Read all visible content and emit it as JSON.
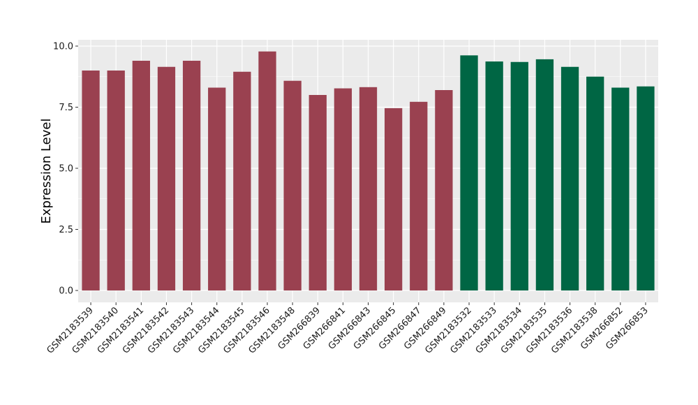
{
  "chart_data": {
    "type": "bar",
    "title": "",
    "xlabel": "",
    "ylabel": "Expression Level",
    "ylim": [
      0,
      10
    ],
    "yticks": [
      0.0,
      2.5,
      5.0,
      7.5,
      10.0
    ],
    "ytick_labels": [
      "0.0",
      "2.5",
      "5.0",
      "7.5",
      "10.0"
    ],
    "grid": true,
    "legend": "none",
    "colors": {
      "group1": "#9a4150",
      "group2": "#006644",
      "panel_bg": "#ebebeb",
      "grid": "#ffffff"
    },
    "categories": [
      "GSM2183539",
      "GSM2183540",
      "GSM2183541",
      "GSM2183542",
      "GSM2183543",
      "GSM2183544",
      "GSM2183545",
      "GSM2183546",
      "GSM2183548",
      "GSM266839",
      "GSM266841",
      "GSM266843",
      "GSM266845",
      "GSM266847",
      "GSM266849",
      "GSM2183532",
      "GSM2183533",
      "GSM2183534",
      "GSM2183535",
      "GSM2183536",
      "GSM2183538",
      "GSM266852",
      "GSM266853"
    ],
    "values": [
      9.0,
      9.0,
      9.4,
      9.15,
      9.4,
      8.3,
      8.95,
      9.78,
      8.58,
      8.0,
      8.27,
      8.32,
      7.46,
      7.72,
      8.2,
      9.62,
      9.37,
      9.35,
      9.46,
      9.15,
      8.75,
      8.3,
      8.35
    ],
    "groups": [
      "group1",
      "group1",
      "group1",
      "group1",
      "group1",
      "group1",
      "group1",
      "group1",
      "group1",
      "group1",
      "group1",
      "group1",
      "group1",
      "group1",
      "group1",
      "group2",
      "group2",
      "group2",
      "group2",
      "group2",
      "group2",
      "group2",
      "group2"
    ]
  }
}
